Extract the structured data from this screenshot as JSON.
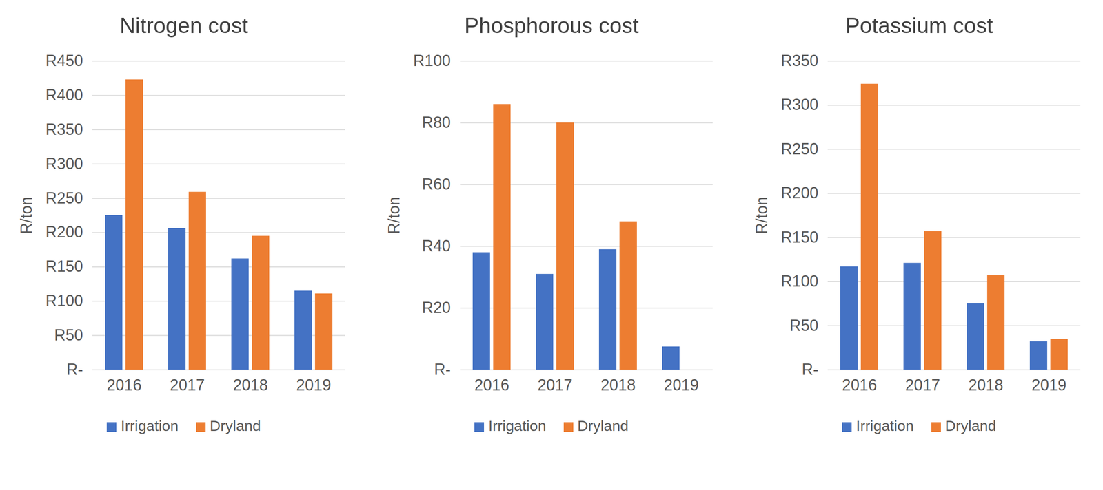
{
  "chart_data": [
    {
      "type": "bar",
      "title": "Nitrogen cost",
      "y_label": "R/ton",
      "categories": [
        "2016",
        "2017",
        "2018",
        "2019"
      ],
      "series": [
        {
          "name": "Irrigation",
          "color": "#4472c4",
          "values": [
            225,
            206,
            162,
            115
          ]
        },
        {
          "name": "Dryland",
          "color": "#ed7d31",
          "values": [
            423,
            259,
            195,
            111
          ]
        }
      ],
      "ylim": [
        0,
        450
      ],
      "yticks": [
        {
          "value": 0,
          "label": "R-"
        },
        {
          "value": 50,
          "label": "R50"
        },
        {
          "value": 100,
          "label": "R100"
        },
        {
          "value": 150,
          "label": "R150"
        },
        {
          "value": 200,
          "label": "R200"
        },
        {
          "value": 250,
          "label": "R250"
        },
        {
          "value": 300,
          "label": "R300"
        },
        {
          "value": 350,
          "label": "R350"
        },
        {
          "value": 400,
          "label": "R400"
        },
        {
          "value": 450,
          "label": "R450"
        }
      ],
      "grid": true,
      "legend": "bottom"
    },
    {
      "type": "bar",
      "title": "Phosphorous cost",
      "y_label": "R/ton",
      "categories": [
        "2016",
        "2017",
        "2018",
        "2019"
      ],
      "series": [
        {
          "name": "Irrigation",
          "color": "#4472c4",
          "values": [
            38,
            31,
            39,
            7.5
          ]
        },
        {
          "name": "Dryland",
          "color": "#ed7d31",
          "values": [
            86,
            80,
            48,
            null
          ]
        }
      ],
      "ylim": [
        0,
        100
      ],
      "yticks": [
        {
          "value": 0,
          "label": "R-"
        },
        {
          "value": 20,
          "label": "R20"
        },
        {
          "value": 40,
          "label": "R40"
        },
        {
          "value": 60,
          "label": "R60"
        },
        {
          "value": 80,
          "label": "R80"
        },
        {
          "value": 100,
          "label": "R100"
        }
      ],
      "grid": true,
      "legend": "bottom"
    },
    {
      "type": "bar",
      "title": "Potassium cost",
      "y_label": "R/ton",
      "categories": [
        "2016",
        "2017",
        "2018",
        "2019"
      ],
      "series": [
        {
          "name": "Irrigation",
          "color": "#4472c4",
          "values": [
            117,
            121,
            75,
            32
          ]
        },
        {
          "name": "Dryland",
          "color": "#ed7d31",
          "values": [
            324,
            157,
            107,
            35
          ]
        }
      ],
      "ylim": [
        0,
        350
      ],
      "yticks": [
        {
          "value": 0,
          "label": "R-"
        },
        {
          "value": 50,
          "label": "R50"
        },
        {
          "value": 100,
          "label": "R100"
        },
        {
          "value": 150,
          "label": "R150"
        },
        {
          "value": 200,
          "label": "R200"
        },
        {
          "value": 250,
          "label": "R250"
        },
        {
          "value": 300,
          "label": "R300"
        },
        {
          "value": 350,
          "label": "R350"
        }
      ],
      "grid": true,
      "legend": "bottom"
    }
  ]
}
